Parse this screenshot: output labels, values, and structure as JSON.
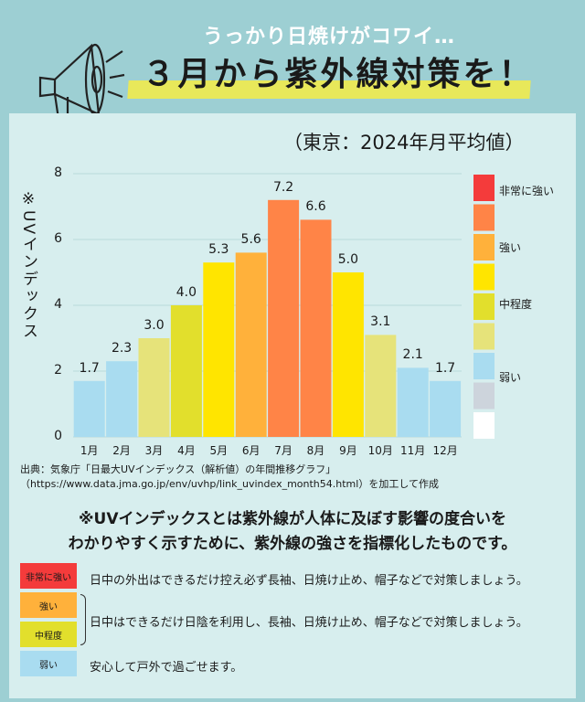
{
  "header": {
    "subtitle": "うっかり日焼けがコワイ…",
    "title": "３月から紫外線対策を！"
  },
  "colors": {
    "very_strong": "#f43b3b",
    "strong": "#ffb13b",
    "moderate": "#e2df2c",
    "weak": "#a9dcf0"
  },
  "chart_data": {
    "type": "bar",
    "title": "（東京：2024年月平均値）",
    "ylabel": "※UVインデックス",
    "xlabel": "",
    "ylim": [
      0,
      8
    ],
    "yticks": [
      "0",
      "2",
      "4",
      "6",
      "8"
    ],
    "grid": true,
    "categories": [
      "1月",
      "2月",
      "3月",
      "4月",
      "5月",
      "6月",
      "7月",
      "8月",
      "9月",
      "10月",
      "11月",
      "12月"
    ],
    "values": [
      1.7,
      2.3,
      3.0,
      4.0,
      5.3,
      5.6,
      7.2,
      6.6,
      5.0,
      3.1,
      2.1,
      1.7
    ],
    "value_labels": [
      "1.7",
      "2.3",
      "3.0",
      "4.0",
      "5.3",
      "5.6",
      "7.2",
      "6.6",
      "5.0",
      "3.1",
      "2.1",
      "1.7"
    ],
    "bar_colors": [
      "#a9dcf0",
      "#a9dcf0",
      "#e6e37a",
      "#e2df2c",
      "#ffe500",
      "#ffb13b",
      "#ff8447",
      "#ff8447",
      "#ffe500",
      "#e6e37a",
      "#a9dcf0",
      "#a9dcf0"
    ],
    "legend": {
      "placement": "right",
      "colors": [
        "#f43b3b",
        "#ff8447",
        "#ffb13b",
        "#ffe500",
        "#e2df2c",
        "#e6e37a",
        "#a9dcf0",
        "#cdd4dc",
        "#ffffff"
      ],
      "labels": [
        "非常に強い",
        "強い",
        "中程度",
        "弱い"
      ]
    }
  },
  "source": {
    "line1": "出典：気象庁「日最大UVインデックス（解析値）の年間推移グラフ」",
    "line2": "（https://www.data.jma.go.jp/env/uvhp/link_uvindex_month54.html）を加工して作成"
  },
  "explanation": {
    "line1": "※UVインデックスとは紫外線が人体に及ぼす影響の度合いを",
    "line2": "わかりやすく示すために、紫外線の強さを指標化したものです。"
  },
  "advice": [
    {
      "level": "非常に強い",
      "text": "日中の外出はできるだけ控え必ず長袖、日焼け止め、帽子などで対策しましょう。"
    },
    {
      "level": "強い"
    },
    {
      "level": "中程度",
      "text": "日中はできるだけ日陰を利用し、長袖、日焼け止め、帽子などで対策しましょう。"
    },
    {
      "level": "弱い",
      "text": "安心して戸外で過ごせます。"
    }
  ]
}
